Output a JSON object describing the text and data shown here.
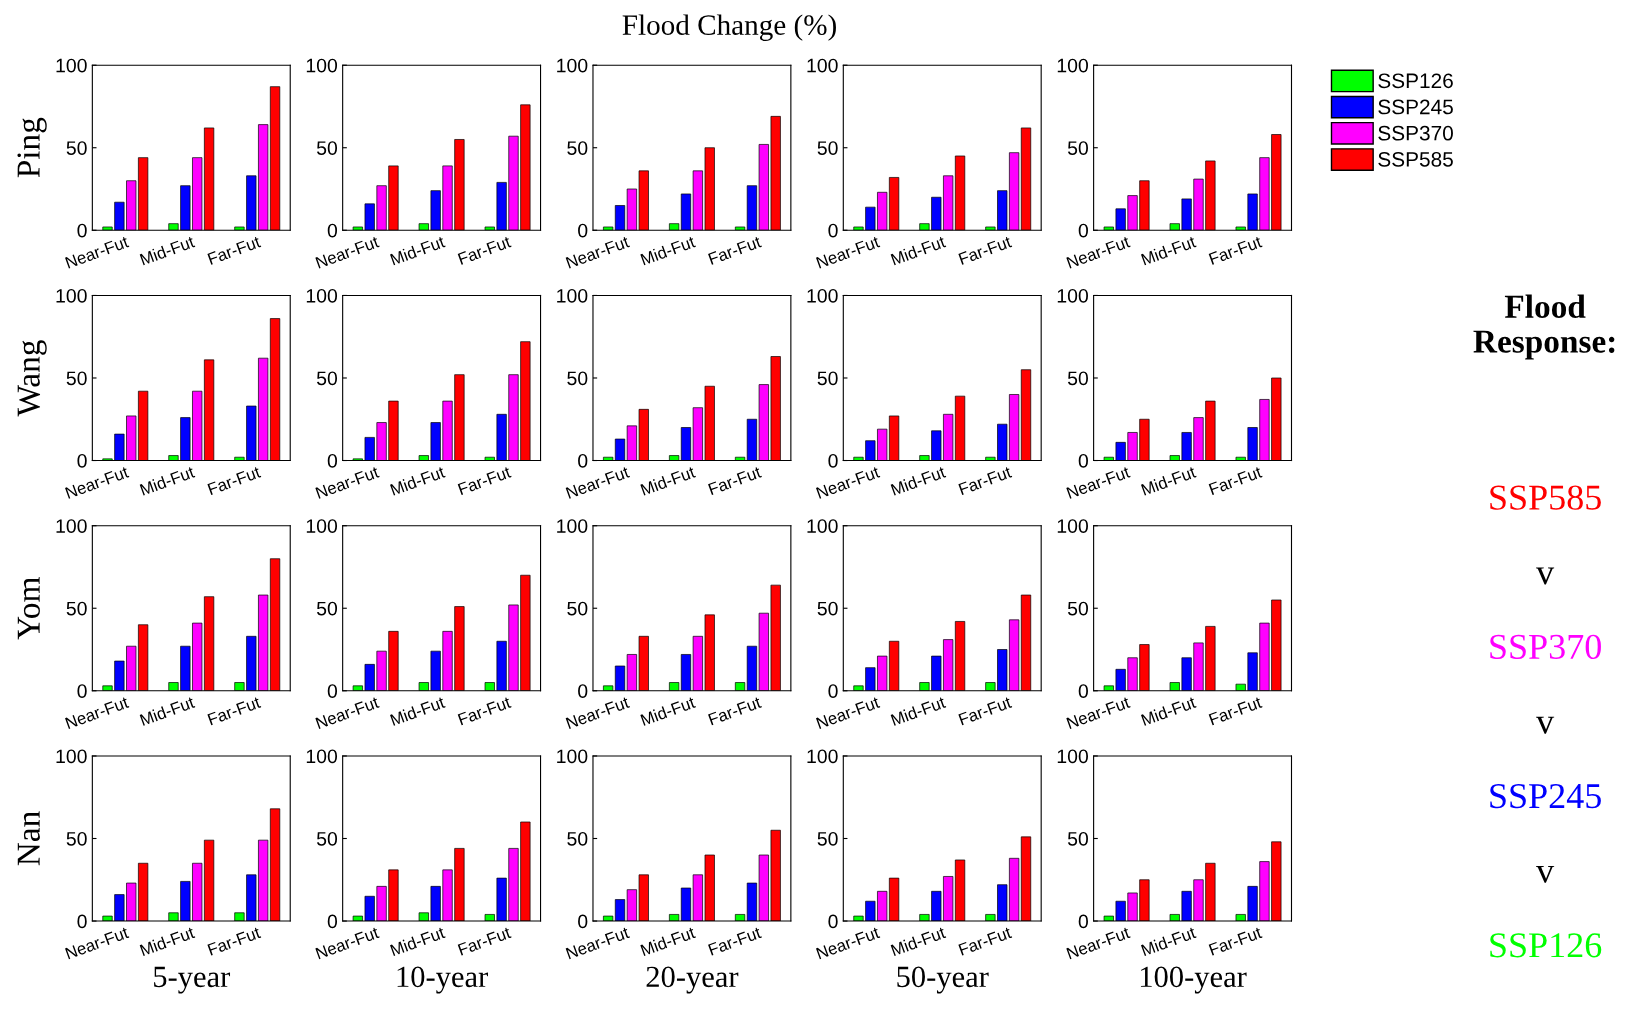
{
  "chart_data": [
    {
      "type": "bar",
      "ylabel": "Ping",
      "categories": [
        "Near-Fut",
        "Mid-Fut",
        "Far-Fut"
      ],
      "ylim": [
        0,
        100
      ],
      "yticks": [
        0,
        50,
        100
      ],
      "grid": false,
      "legend": false,
      "series": [
        {
          "color": "#00ff00",
          "values": [
            2,
            4,
            2
          ]
        },
        {
          "color": "#0000ff",
          "values": [
            17,
            27,
            33
          ]
        },
        {
          "color": "#ff00ff",
          "values": [
            30,
            44,
            64
          ]
        },
        {
          "color": "#ff0000",
          "values": [
            44,
            62,
            87
          ]
        }
      ]
    },
    {
      "type": "bar",
      "categories": [
        "Near-Fut",
        "Mid-Fut",
        "Far-Fut"
      ],
      "ylim": [
        0,
        100
      ],
      "yticks": [
        0,
        50,
        100
      ],
      "grid": false,
      "legend": false,
      "series": [
        {
          "color": "#00ff00",
          "values": [
            2,
            4,
            2
          ]
        },
        {
          "color": "#0000ff",
          "values": [
            16,
            24,
            29
          ]
        },
        {
          "color": "#ff00ff",
          "values": [
            27,
            39,
            57
          ]
        },
        {
          "color": "#ff0000",
          "values": [
            39,
            55,
            76
          ]
        }
      ]
    },
    {
      "type": "bar",
      "title": "Flood Change (%)",
      "categories": [
        "Near-Fut",
        "Mid-Fut",
        "Far-Fut"
      ],
      "ylim": [
        0,
        100
      ],
      "yticks": [
        0,
        50,
        100
      ],
      "grid": false,
      "legend": false,
      "series": [
        {
          "color": "#00ff00",
          "values": [
            2,
            4,
            2
          ]
        },
        {
          "color": "#0000ff",
          "values": [
            15,
            22,
            27
          ]
        },
        {
          "color": "#ff00ff",
          "values": [
            25,
            36,
            52
          ]
        },
        {
          "color": "#ff0000",
          "values": [
            36,
            50,
            69
          ]
        }
      ]
    },
    {
      "type": "bar",
      "categories": [
        "Near-Fut",
        "Mid-Fut",
        "Far-Fut"
      ],
      "ylim": [
        0,
        100
      ],
      "yticks": [
        0,
        50,
        100
      ],
      "grid": false,
      "legend": false,
      "series": [
        {
          "color": "#00ff00",
          "values": [
            2,
            4,
            2
          ]
        },
        {
          "color": "#0000ff",
          "values": [
            14,
            20,
            24
          ]
        },
        {
          "color": "#ff00ff",
          "values": [
            23,
            33,
            47
          ]
        },
        {
          "color": "#ff0000",
          "values": [
            32,
            45,
            62
          ]
        }
      ]
    },
    {
      "type": "bar",
      "categories": [
        "Near-Fut",
        "Mid-Fut",
        "Far-Fut"
      ],
      "ylim": [
        0,
        100
      ],
      "yticks": [
        0,
        50,
        100
      ],
      "grid": false,
      "legend": "right",
      "series": [
        {
          "name": "SSP126",
          "color": "#00ff00",
          "values": [
            2,
            4,
            2
          ]
        },
        {
          "name": "SSP245",
          "color": "#0000ff",
          "values": [
            13,
            19,
            22
          ]
        },
        {
          "name": "SSP370",
          "color": "#ff00ff",
          "values": [
            21,
            31,
            44
          ]
        },
        {
          "name": "SSP585",
          "color": "#ff0000",
          "values": [
            30,
            42,
            58
          ]
        }
      ]
    },
    {
      "type": "bar",
      "ylabel": "Wang",
      "categories": [
        "Near-Fut",
        "Mid-Fut",
        "Far-Fut"
      ],
      "ylim": [
        0,
        100
      ],
      "yticks": [
        0,
        50,
        100
      ],
      "grid": false,
      "legend": false,
      "series": [
        {
          "color": "#00ff00",
          "values": [
            1,
            3,
            2
          ]
        },
        {
          "color": "#0000ff",
          "values": [
            16,
            26,
            33
          ]
        },
        {
          "color": "#ff00ff",
          "values": [
            27,
            42,
            62
          ]
        },
        {
          "color": "#ff0000",
          "values": [
            42,
            61,
            86
          ]
        }
      ]
    },
    {
      "type": "bar",
      "categories": [
        "Near-Fut",
        "Mid-Fut",
        "Far-Fut"
      ],
      "ylim": [
        0,
        100
      ],
      "yticks": [
        0,
        50,
        100
      ],
      "grid": false,
      "legend": false,
      "series": [
        {
          "color": "#00ff00",
          "values": [
            1,
            3,
            2
          ]
        },
        {
          "color": "#0000ff",
          "values": [
            14,
            23,
            28
          ]
        },
        {
          "color": "#ff00ff",
          "values": [
            23,
            36,
            52
          ]
        },
        {
          "color": "#ff0000",
          "values": [
            36,
            52,
            72
          ]
        }
      ]
    },
    {
      "type": "bar",
      "categories": [
        "Near-Fut",
        "Mid-Fut",
        "Far-Fut"
      ],
      "ylim": [
        0,
        100
      ],
      "yticks": [
        0,
        50,
        100
      ],
      "grid": false,
      "legend": false,
      "series": [
        {
          "color": "#00ff00",
          "values": [
            2,
            3,
            2
          ]
        },
        {
          "color": "#0000ff",
          "values": [
            13,
            20,
            25
          ]
        },
        {
          "color": "#ff00ff",
          "values": [
            21,
            32,
            46
          ]
        },
        {
          "color": "#ff0000",
          "values": [
            31,
            45,
            63
          ]
        }
      ]
    },
    {
      "type": "bar",
      "categories": [
        "Near-Fut",
        "Mid-Fut",
        "Far-Fut"
      ],
      "ylim": [
        0,
        100
      ],
      "yticks": [
        0,
        50,
        100
      ],
      "grid": false,
      "legend": false,
      "series": [
        {
          "color": "#00ff00",
          "values": [
            2,
            3,
            2
          ]
        },
        {
          "color": "#0000ff",
          "values": [
            12,
            18,
            22
          ]
        },
        {
          "color": "#ff00ff",
          "values": [
            19,
            28,
            40
          ]
        },
        {
          "color": "#ff0000",
          "values": [
            27,
            39,
            55
          ]
        }
      ]
    },
    {
      "type": "bar",
      "annotations": [
        "Flood\nResponse:",
        "SSP585",
        "v",
        "SSP370",
        "v",
        "SSP245",
        "v",
        "SSP126"
      ],
      "categories": [
        "Near-Fut",
        "Mid-Fut",
        "Far-Fut"
      ],
      "ylim": [
        0,
        100
      ],
      "yticks": [
        0,
        50,
        100
      ],
      "grid": false,
      "legend": false,
      "series": [
        {
          "color": "#00ff00",
          "values": [
            2,
            3,
            2
          ]
        },
        {
          "color": "#0000ff",
          "values": [
            11,
            17,
            20
          ]
        },
        {
          "color": "#ff00ff",
          "values": [
            17,
            26,
            37
          ]
        },
        {
          "color": "#ff0000",
          "values": [
            25,
            36,
            50
          ]
        }
      ]
    },
    {
      "type": "bar",
      "ylabel": "Yom",
      "categories": [
        "Near-Fut",
        "Mid-Fut",
        "Far-Fut"
      ],
      "ylim": [
        0,
        100
      ],
      "yticks": [
        0,
        50,
        100
      ],
      "grid": false,
      "legend": false,
      "series": [
        {
          "color": "#00ff00",
          "values": [
            3,
            5,
            5
          ]
        },
        {
          "color": "#0000ff",
          "values": [
            18,
            27,
            33
          ]
        },
        {
          "color": "#ff00ff",
          "values": [
            27,
            41,
            58
          ]
        },
        {
          "color": "#ff0000",
          "values": [
            40,
            57,
            80
          ]
        }
      ]
    },
    {
      "type": "bar",
      "categories": [
        "Near-Fut",
        "Mid-Fut",
        "Far-Fut"
      ],
      "ylim": [
        0,
        100
      ],
      "yticks": [
        0,
        50,
        100
      ],
      "grid": false,
      "legend": false,
      "series": [
        {
          "color": "#00ff00",
          "values": [
            3,
            5,
            5
          ]
        },
        {
          "color": "#0000ff",
          "values": [
            16,
            24,
            30
          ]
        },
        {
          "color": "#ff00ff",
          "values": [
            24,
            36,
            52
          ]
        },
        {
          "color": "#ff0000",
          "values": [
            36,
            51,
            70
          ]
        }
      ]
    },
    {
      "type": "bar",
      "categories": [
        "Near-Fut",
        "Mid-Fut",
        "Far-Fut"
      ],
      "ylim": [
        0,
        100
      ],
      "yticks": [
        0,
        50,
        100
      ],
      "grid": false,
      "legend": false,
      "series": [
        {
          "color": "#00ff00",
          "values": [
            3,
            5,
            5
          ]
        },
        {
          "color": "#0000ff",
          "values": [
            15,
            22,
            27
          ]
        },
        {
          "color": "#ff00ff",
          "values": [
            22,
            33,
            47
          ]
        },
        {
          "color": "#ff0000",
          "values": [
            33,
            46,
            64
          ]
        }
      ]
    },
    {
      "type": "bar",
      "categories": [
        "Near-Fut",
        "Mid-Fut",
        "Far-Fut"
      ],
      "ylim": [
        0,
        100
      ],
      "yticks": [
        0,
        50,
        100
      ],
      "grid": false,
      "legend": false,
      "series": [
        {
          "color": "#00ff00",
          "values": [
            3,
            5,
            5
          ]
        },
        {
          "color": "#0000ff",
          "values": [
            14,
            21,
            25
          ]
        },
        {
          "color": "#ff00ff",
          "values": [
            21,
            31,
            43
          ]
        },
        {
          "color": "#ff0000",
          "values": [
            30,
            42,
            58
          ]
        }
      ]
    },
    {
      "type": "bar",
      "categories": [
        "Near-Fut",
        "Mid-Fut",
        "Far-Fut"
      ],
      "ylim": [
        0,
        100
      ],
      "yticks": [
        0,
        50,
        100
      ],
      "grid": false,
      "legend": false,
      "series": [
        {
          "color": "#00ff00",
          "values": [
            3,
            5,
            4
          ]
        },
        {
          "color": "#0000ff",
          "values": [
            13,
            20,
            23
          ]
        },
        {
          "color": "#ff00ff",
          "values": [
            20,
            29,
            41
          ]
        },
        {
          "color": "#ff0000",
          "values": [
            28,
            39,
            55
          ]
        }
      ]
    },
    {
      "type": "bar",
      "ylabel": "Nan",
      "xlabel": "5-year",
      "categories": [
        "Near-Fut",
        "Mid-Fut",
        "Far-Fut"
      ],
      "ylim": [
        0,
        100
      ],
      "yticks": [
        0,
        50,
        100
      ],
      "grid": false,
      "legend": false,
      "series": [
        {
          "color": "#00ff00",
          "values": [
            3,
            5,
            5
          ]
        },
        {
          "color": "#0000ff",
          "values": [
            16,
            24,
            28
          ]
        },
        {
          "color": "#ff00ff",
          "values": [
            23,
            35,
            49
          ]
        },
        {
          "color": "#ff0000",
          "values": [
            35,
            49,
            68
          ]
        }
      ]
    },
    {
      "type": "bar",
      "xlabel": "10-year",
      "categories": [
        "Near-Fut",
        "Mid-Fut",
        "Far-Fut"
      ],
      "ylim": [
        0,
        100
      ],
      "yticks": [
        0,
        50,
        100
      ],
      "grid": false,
      "legend": false,
      "series": [
        {
          "color": "#00ff00",
          "values": [
            3,
            5,
            4
          ]
        },
        {
          "color": "#0000ff",
          "values": [
            15,
            21,
            26
          ]
        },
        {
          "color": "#ff00ff",
          "values": [
            21,
            31,
            44
          ]
        },
        {
          "color": "#ff0000",
          "values": [
            31,
            44,
            60
          ]
        }
      ]
    },
    {
      "type": "bar",
      "xlabel": "20-year",
      "categories": [
        "Near-Fut",
        "Mid-Fut",
        "Far-Fut"
      ],
      "ylim": [
        0,
        100
      ],
      "yticks": [
        0,
        50,
        100
      ],
      "grid": false,
      "legend": false,
      "series": [
        {
          "color": "#00ff00",
          "values": [
            3,
            4,
            4
          ]
        },
        {
          "color": "#0000ff",
          "values": [
            13,
            20,
            23
          ]
        },
        {
          "color": "#ff00ff",
          "values": [
            19,
            28,
            40
          ]
        },
        {
          "color": "#ff0000",
          "values": [
            28,
            40,
            55
          ]
        }
      ]
    },
    {
      "type": "bar",
      "xlabel": "50-year",
      "categories": [
        "Near-Fut",
        "Mid-Fut",
        "Far-Fut"
      ],
      "ylim": [
        0,
        100
      ],
      "yticks": [
        0,
        50,
        100
      ],
      "grid": false,
      "legend": false,
      "series": [
        {
          "color": "#00ff00",
          "values": [
            3,
            4,
            4
          ]
        },
        {
          "color": "#0000ff",
          "values": [
            12,
            18,
            22
          ]
        },
        {
          "color": "#ff00ff",
          "values": [
            18,
            27,
            38
          ]
        },
        {
          "color": "#ff0000",
          "values": [
            26,
            37,
            51
          ]
        }
      ]
    },
    {
      "type": "bar",
      "xlabel": "100-year",
      "categories": [
        "Near-Fut",
        "Mid-Fut",
        "Far-Fut"
      ],
      "ylim": [
        0,
        100
      ],
      "yticks": [
        0,
        50,
        100
      ],
      "grid": false,
      "legend": false,
      "series": [
        {
          "color": "#00ff00",
          "values": [
            3,
            4,
            4
          ]
        },
        {
          "color": "#0000ff",
          "values": [
            12,
            18,
            21
          ]
        },
        {
          "color": "#ff00ff",
          "values": [
            17,
            25,
            36
          ]
        },
        {
          "color": "#ff0000",
          "values": [
            25,
            35,
            48
          ]
        }
      ]
    }
  ]
}
